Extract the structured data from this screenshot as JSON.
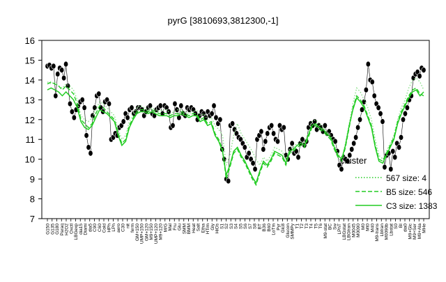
{
  "chart_data": {
    "type": "line",
    "title": "pyrG [3810693,3812300,-1]",
    "xlabel": "",
    "ylabel": "",
    "ylim": [
      7,
      16
    ],
    "yticks": [
      7,
      8,
      9,
      10,
      11,
      12,
      13,
      14,
      15,
      16
    ],
    "grid": false,
    "legend_position": "right",
    "legend_title": "cluster",
    "legend": [
      {
        "label": "567 size: 4",
        "style": "dotted",
        "color": "#22cc22"
      },
      {
        "label": "B5 size: 546",
        "style": "dashed",
        "color": "#22cc22"
      },
      {
        "label": "C3 size: 1383",
        "style": "solid",
        "color": "#22cc22"
      }
    ],
    "xtick_labels": [
      "G150",
      "G135",
      "G180",
      "Paraq",
      "H2O2",
      "Oxctl",
      "LBGexp",
      "dia15",
      "Diami",
      "dia5",
      "C90",
      "C60",
      "Cold",
      "HPh",
      "LPh",
      "aero",
      "C30",
      "nit",
      "ferm",
      "GM+150",
      "UMP+150",
      "GM+120",
      "M9+150",
      "UMP+120",
      "M9+120",
      "M/G",
      "Mal",
      "Fru",
      "Glu",
      "SMM",
      "BMM",
      "Heat",
      "Salt",
      "Etha",
      "HTim",
      "Gly",
      "HiOs",
      "S1",
      "S2",
      "S3",
      "S4",
      "S5",
      "S6",
      "S7",
      "S8",
      "BT",
      "B36",
      "B60",
      "LoTm",
      "Pyr",
      "Glc8",
      "Glucon",
      "SMMPy",
      "T1",
      "T2",
      "T3",
      "T4",
      "T5",
      "T6",
      "M9-stat",
      "BC",
      "Sw",
      "LPhT",
      "LBGstat",
      "LBGtran",
      "M0045",
      "M0090",
      "M0",
      "Mt0",
      "M40",
      "M9-trans",
      "Lbtran",
      "M0090b",
      "Lbstat",
      "S0",
      "BI",
      "dia0",
      "M9+Glc",
      "M9+Ser",
      "M9+Ala",
      "MHe"
    ],
    "series": [
      {
        "name": "",
        "style": "markers",
        "color": "#000000",
        "values": [
          14.7,
          14.75,
          14.6,
          14.7,
          13.2,
          14.3,
          14.6,
          14.5,
          14.1,
          14.8,
          13.7,
          12.8,
          12.4,
          12.1,
          12.5,
          12.7,
          12.9,
          13.0,
          12.6,
          11.2,
          10.6,
          10.3,
          12.2,
          12.6,
          13.2,
          13.3,
          12.6,
          12.4,
          12.9,
          13.0,
          12.8,
          11.0,
          11.1,
          11.3,
          11.2,
          11.6,
          11.7,
          11.9,
          12.3,
          12.1,
          12.5,
          12.6,
          12.3,
          12.4,
          12.6,
          12.6,
          12.5,
          12.2,
          12.4,
          12.6,
          12.7,
          12.3,
          12.2,
          12.5,
          12.6,
          12.7,
          12.3,
          12.7,
          12.6,
          12.4,
          11.6,
          11.7,
          12.8,
          12.5,
          12.1,
          12.7,
          12.3,
          12.2,
          12.6,
          12.5,
          12.6,
          12.5,
          12.3,
          12.0,
          12.2,
          12.4,
          12.3,
          12.1,
          12.4,
          12.2,
          12.3,
          12.7,
          12.1,
          11.8,
          12.0,
          10.5,
          10.0,
          9.0,
          8.9,
          11.7,
          11.8,
          11.5,
          11.3,
          11.1,
          11.0,
          10.8,
          10.6,
          10.1,
          10.3,
          10.0,
          9.8,
          9.5,
          11.0,
          11.2,
          11.4,
          10.5,
          10.9,
          11.3,
          11.6,
          11.7,
          11.3,
          11.0,
          10.9,
          11.7,
          11.5,
          11.6,
          10.2,
          10.0,
          10.5,
          10.8,
          10.3,
          10.4,
          10.1,
          10.8,
          11.0,
          10.7,
          10.9,
          11.6,
          11.8,
          11.7,
          11.9,
          11.5,
          11.7,
          11.6,
          11.4,
          11.7,
          11.3,
          11.4,
          11.2,
          11.0,
          10.9,
          10.4,
          9.7,
          9.5,
          10.1,
          10.0,
          9.9,
          10.2,
          10.5,
          10.8,
          11.1,
          11.6,
          12.0,
          12.5,
          12.9,
          13.5,
          14.8,
          14.0,
          13.9,
          13.2,
          12.8,
          12.6,
          12.3,
          11.9,
          9.6,
          10.2,
          10.3,
          9.5,
          10.4,
          10.1,
          10.8,
          10.6,
          11.1,
          12.0,
          12.3,
          12.6,
          13.0,
          13.2,
          14.1,
          14.3,
          14.4,
          14.2,
          14.6,
          14.5
        ]
      },
      {
        "name": "",
        "style": "dotted",
        "color": "#88e088",
        "values": [
          13.9,
          13.8,
          13.9,
          13.7,
          13.6,
          13.8,
          13.7,
          13.5,
          13.0,
          12.2,
          12.0,
          11.9,
          12.1,
          12.5,
          12.9,
          12.8,
          12.6,
          12.4,
          12.2,
          11.5,
          11.0,
          11.2,
          11.9,
          12.3,
          12.6,
          12.7,
          12.6,
          12.5,
          12.6,
          12.5,
          12.4,
          12.5,
          12.5,
          12.3,
          12.4,
          12.5,
          12.5,
          12.4,
          12.3,
          12.4,
          12.5,
          12.2,
          12.3,
          12.0,
          12.1,
          11.7,
          11.5,
          11.2,
          9.7,
          10.2,
          11.2,
          11.8,
          11.3,
          11.0,
          10.7,
          10.4,
          10.0,
          9.7,
          10.1,
          9.9,
          10.2,
          10.6,
          10.5,
          10.4,
          10.0,
          10.5,
          10.6,
          10.8,
          10.9,
          10.8,
          11.3,
          11.9,
          12.0,
          11.8,
          11.6,
          11.4,
          11.2,
          10.7,
          10.3,
          10.0,
          10.8,
          11.8,
          12.8,
          13.6,
          13.4,
          13.0,
          12.6,
          12.0,
          11.0,
          10.2,
          10.0,
          10.4,
          10.8,
          11.2,
          12.0,
          12.6,
          13.0,
          13.6,
          14.0,
          14.1,
          13.9,
          13.5
        ]
      },
      {
        "name": "",
        "style": "dashed",
        "color": "#22cc22",
        "values": [
          13.8,
          13.9,
          13.8,
          13.7,
          13.5,
          13.7,
          13.5,
          13.3,
          12.8,
          12.0,
          11.8,
          11.6,
          11.8,
          12.3,
          12.7,
          12.6,
          12.4,
          12.2,
          12.0,
          11.3,
          10.8,
          11.0,
          11.7,
          12.1,
          12.4,
          12.5,
          12.5,
          12.4,
          12.5,
          12.4,
          12.3,
          12.3,
          12.3,
          12.2,
          12.3,
          12.3,
          12.4,
          12.3,
          12.2,
          12.3,
          12.3,
          12.0,
          12.1,
          11.8,
          11.9,
          11.3,
          11.0,
          10.5,
          9.0,
          9.6,
          10.3,
          10.5,
          10.1,
          9.8,
          9.4,
          9.0,
          8.7,
          9.3,
          9.8,
          9.6,
          9.9,
          10.3,
          10.2,
          10.1,
          9.7,
          10.3,
          10.4,
          10.6,
          10.7,
          10.6,
          11.1,
          11.6,
          11.7,
          11.5,
          11.4,
          11.2,
          11.0,
          10.5,
          10.1,
          9.9,
          10.6,
          11.6,
          12.6,
          13.2,
          13.0,
          12.7,
          12.2,
          11.7,
          10.7,
          10.0,
          9.9,
          10.3,
          10.7,
          11.1,
          11.9,
          12.4,
          12.8,
          13.2,
          13.5,
          13.6,
          13.3,
          13.2
        ]
      },
      {
        "name": "",
        "style": "solid",
        "color": "#22cc22",
        "values": [
          13.5,
          13.6,
          13.5,
          13.4,
          13.2,
          13.4,
          13.2,
          13.0,
          12.6,
          11.9,
          11.6,
          11.5,
          11.7,
          12.1,
          12.5,
          12.4,
          12.3,
          12.1,
          11.9,
          11.2,
          10.7,
          10.9,
          11.6,
          12.0,
          12.3,
          12.4,
          12.4,
          12.3,
          12.4,
          12.3,
          12.2,
          12.2,
          12.2,
          12.1,
          12.2,
          12.2,
          12.3,
          12.2,
          12.1,
          12.2,
          12.2,
          11.9,
          12.0,
          11.7,
          11.8,
          11.2,
          10.9,
          10.4,
          9.2,
          9.7,
          10.4,
          10.6,
          10.2,
          9.9,
          9.5,
          9.1,
          8.8,
          9.4,
          9.9,
          9.7,
          10.0,
          10.4,
          10.3,
          10.2,
          9.8,
          10.4,
          10.5,
          10.7,
          10.8,
          10.7,
          11.2,
          11.7,
          11.8,
          11.6,
          11.5,
          11.3,
          11.1,
          10.6,
          10.2,
          10.0,
          10.7,
          11.7,
          12.5,
          13.1,
          12.9,
          12.6,
          12.1,
          11.6,
          10.6,
          9.9,
          9.8,
          10.2,
          10.6,
          11.0,
          11.8,
          12.3,
          12.7,
          13.1,
          13.4,
          13.5,
          13.2,
          13.4
        ]
      }
    ]
  }
}
